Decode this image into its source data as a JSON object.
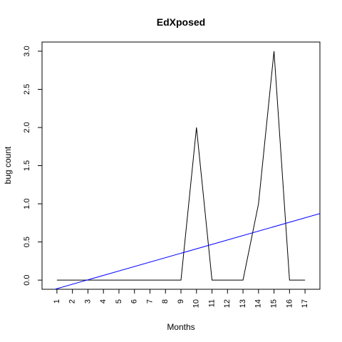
{
  "chart_data": {
    "type": "line",
    "title": "EdXposed",
    "xlabel": "Months",
    "ylabel": "bug count",
    "x_tick_labels": [
      "1",
      "2",
      "3",
      "4",
      "5",
      "6",
      "7",
      "8",
      "9",
      "10",
      "11",
      "12",
      "13",
      "14",
      "15",
      "16",
      "17"
    ],
    "y_tick_labels": [
      "0.0",
      "0.5",
      "1.0",
      "1.5",
      "2.0",
      "2.5",
      "3.0"
    ],
    "x": [
      1,
      2,
      3,
      4,
      5,
      6,
      7,
      8,
      9,
      10,
      11,
      12,
      13,
      14,
      15,
      16,
      17
    ],
    "xlim": [
      0.04,
      17.96
    ],
    "ylim": [
      -0.12,
      3.12
    ],
    "series": [
      {
        "values": [
          0,
          0,
          0,
          0,
          0,
          0,
          0,
          0,
          0,
          2,
          0,
          0,
          0,
          1,
          3,
          0,
          0
        ],
        "color": "#000000"
      }
    ],
    "trendline": {
      "intercept": -0.17,
      "slope": 0.058,
      "color": "#0000ff"
    },
    "grid": false,
    "legend": false
  }
}
